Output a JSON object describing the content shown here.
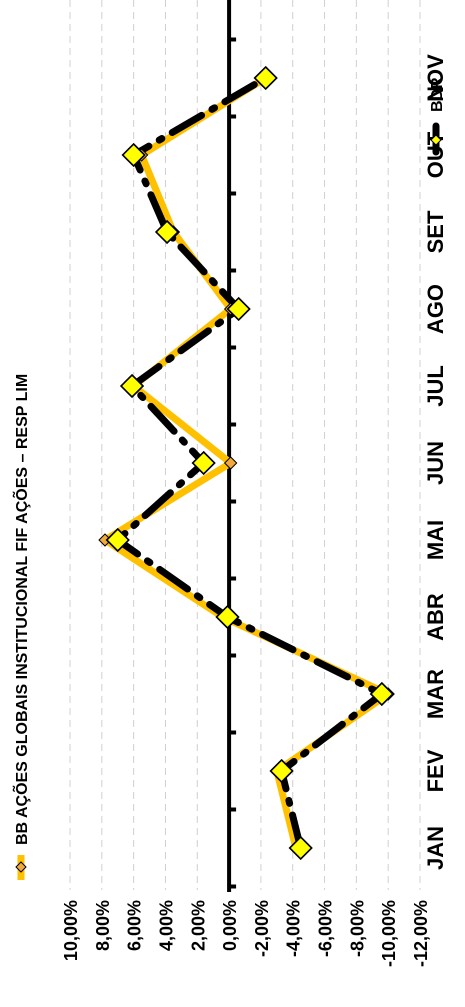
{
  "chart_data": {
    "type": "line",
    "title": "",
    "xlabel": "",
    "ylabel": "",
    "categories": [
      "JAN",
      "FEV",
      "MAR",
      "ABR",
      "MAI",
      "JUN",
      "JUL",
      "AGO",
      "SET",
      "OUT",
      "NOV"
    ],
    "ylim": [
      -12,
      10
    ],
    "y_ticks": [
      "10,00%",
      "8,00%",
      "6,00%",
      "4,00%",
      "2,00%",
      "0,00%",
      "-2,00%",
      "-4,00%",
      "-6,00%",
      "-8,00%",
      "-10,00%",
      "-12,00%"
    ],
    "y_tick_values": [
      10,
      8,
      6,
      4,
      2,
      0,
      -2,
      -4,
      -6,
      -8,
      -10,
      -12
    ],
    "grid": true,
    "legend_position": "top",
    "series": [
      {
        "name": "BB AÇÕES GLOBAIS INSTITUCIONAL FIF AÇÕES – RESP LIM",
        "values": [
          -4.2,
          -3.0,
          -10.0,
          0.4,
          7.8,
          -0.1,
          6.0,
          -0.1,
          3.5,
          5.5,
          -2.3
        ],
        "color": "#FFC000",
        "marker_color": "#F2A93B",
        "style": "solid"
      },
      {
        "name": "BDR",
        "values": [
          -4.5,
          -3.3,
          -9.6,
          0.1,
          7.0,
          1.6,
          6.1,
          -0.6,
          3.9,
          6.0,
          -2.3
        ],
        "color": "#000000",
        "marker_color": "#FFFF00",
        "style": "dashed"
      }
    ]
  }
}
